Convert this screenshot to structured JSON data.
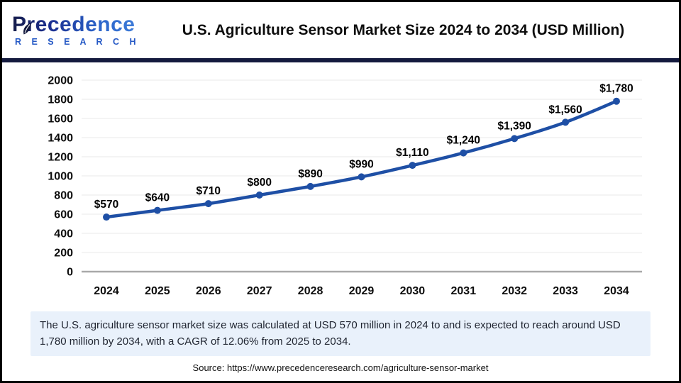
{
  "header": {
    "logo": {
      "brand": "Precedence",
      "sub": "R E S E A R C H"
    },
    "title": "U.S. Agriculture Sensor Market Size 2024 to 2034 (USD Million)"
  },
  "chart_data": {
    "type": "line",
    "title": "U.S. Agriculture Sensor Market Size 2024 to 2034 (USD Million)",
    "categories": [
      "2024",
      "2025",
      "2026",
      "2027",
      "2028",
      "2029",
      "2030",
      "2031",
      "2032",
      "2033",
      "2034"
    ],
    "values": [
      570,
      640,
      710,
      800,
      890,
      990,
      1110,
      1240,
      1390,
      1560,
      1780
    ],
    "point_labels": [
      "$570",
      "$640",
      "$710",
      "$800",
      "$890",
      "$990",
      "$1,110",
      "$1,240",
      "$1,390",
      "$1,560",
      "$1,780"
    ],
    "xlabel": "",
    "ylabel": "",
    "ylim": [
      0,
      2000
    ],
    "ytick_step": 200,
    "grid": true,
    "legend": "none",
    "series_name": "U.S. Agriculture Sensor Market Size (USD Million)"
  },
  "summary": {
    "text": "The U.S. agriculture sensor market size was calculated at USD 570 million in 2024 to and is expected to reach around USD 1,780 million by 2034, with a CAGR of 12.06% from 2025 to 2034."
  },
  "source": {
    "text": "Source: https://www.precedenceresearch.com/agriculture-sensor-market"
  },
  "colors": {
    "line_blue": "#1E4FA5",
    "navy_bar": "#141A3E",
    "grid_gray": "#E8E8E8",
    "axis_gray": "#A9A9A9",
    "label_black": "#0d0d0d",
    "summary_bg": "#E9F1FB",
    "logo_blue": "#2458C5"
  }
}
